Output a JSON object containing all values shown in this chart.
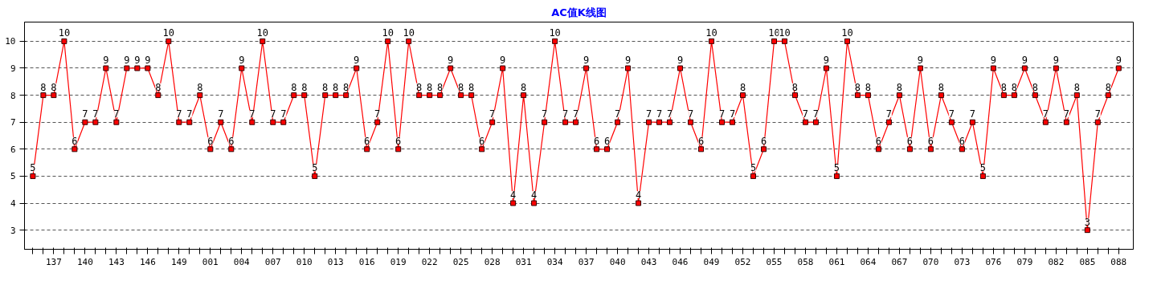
{
  "chart_data": {
    "type": "line",
    "title": "AC值K线图",
    "categories": [
      null,
      null,
      "137",
      null,
      null,
      "140",
      null,
      null,
      "143",
      null,
      null,
      "146",
      null,
      null,
      "149",
      null,
      null,
      "001",
      null,
      null,
      "004",
      null,
      null,
      "007",
      null,
      null,
      "010",
      null,
      null,
      "013",
      null,
      null,
      "016",
      null,
      null,
      "019",
      null,
      null,
      "022",
      null,
      null,
      "025",
      null,
      null,
      "028",
      null,
      null,
      "031",
      null,
      null,
      "034",
      null,
      null,
      "037",
      null,
      null,
      "040",
      null,
      null,
      "043",
      null,
      null,
      "046",
      null,
      null,
      "049",
      null,
      null,
      "052",
      null,
      null,
      "055",
      null,
      null,
      "058",
      null,
      null,
      "061",
      null,
      null,
      "064",
      null,
      null,
      "067",
      null,
      null,
      "070",
      null,
      null,
      "073",
      null,
      null,
      "076",
      null,
      null,
      "079",
      null,
      null,
      "082",
      null,
      null,
      "085",
      null,
      null,
      "088"
    ],
    "series": [
      {
        "color": "#ff0000",
        "values": [
          5,
          8,
          8,
          10,
          6,
          7,
          7,
          9,
          7,
          9,
          9,
          9,
          8,
          10,
          7,
          7,
          8,
          6,
          7,
          6,
          9,
          7,
          10,
          7,
          7,
          8,
          8,
          5,
          8,
          8,
          8,
          9,
          6,
          7,
          10,
          6,
          10,
          8,
          8,
          8,
          9,
          8,
          8,
          6,
          7,
          9,
          4,
          8,
          4,
          7,
          10,
          7,
          7,
          9,
          6,
          6,
          7,
          9,
          4,
          7,
          7,
          7,
          9,
          7,
          6,
          10,
          7,
          7,
          8,
          5,
          6,
          10,
          10,
          8,
          7,
          7,
          9,
          5,
          10,
          8,
          8,
          6,
          7,
          8,
          6,
          9,
          6,
          8,
          7,
          6,
          7,
          5,
          9,
          8,
          8,
          9,
          8,
          7,
          9,
          7,
          8,
          3,
          7,
          8,
          9
        ]
      }
    ],
    "ylim": [
      2.29,
      10.71
    ],
    "yticks": [
      3,
      4,
      5,
      6,
      7,
      8,
      9,
      10
    ],
    "grid": "y",
    "marker": "square",
    "line_style": "solid",
    "data_labels": true
  }
}
